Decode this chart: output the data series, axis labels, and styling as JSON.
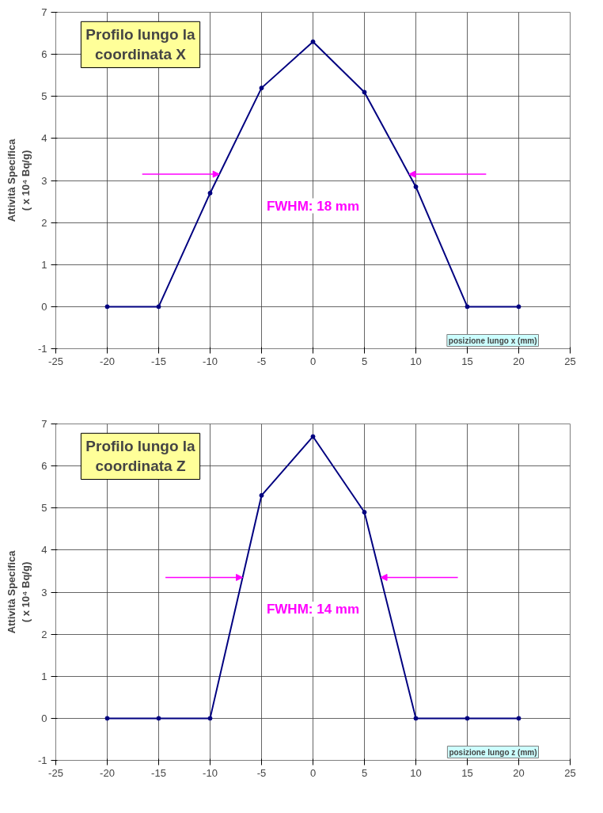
{
  "chart_data": [
    {
      "type": "line",
      "title": "Profilo lungo la\ncoordinata X",
      "xlabel": "posizione lungo x (mm)",
      "ylabel": "Attività Specifica\n( x 10⁴ Bq/g)",
      "x": [
        -20,
        -15,
        -10,
        -5,
        0,
        5,
        10,
        15,
        20
      ],
      "series": [
        {
          "color": "#000080",
          "values": [
            0,
            0,
            2.7,
            5.2,
            6.3,
            5.1,
            2.85,
            0,
            0
          ]
        }
      ],
      "xlim": [
        -25,
        25
      ],
      "ylim": [
        -1,
        7
      ],
      "xticks": [
        -25,
        -20,
        -15,
        -10,
        -5,
        0,
        5,
        10,
        15,
        20,
        25
      ],
      "yticks": [
        -1,
        0,
        1,
        2,
        3,
        4,
        5,
        6,
        7
      ],
      "grid": true,
      "marker": "circle",
      "line_style": "solid",
      "annotations": [
        "FWHM: 18 mm"
      ]
    },
    {
      "type": "line",
      "title": "Profilo lungo la\ncoordinata Z",
      "xlabel": "posizione lungo z (mm)",
      "ylabel": "Attività Specifica\n( x 10⁴ Bq/g)",
      "x": [
        -20,
        -15,
        -10,
        -5,
        0,
        5,
        10,
        15,
        20
      ],
      "series": [
        {
          "color": "#000080",
          "values": [
            0,
            0,
            0,
            5.3,
            6.7,
            4.9,
            0,
            0,
            0
          ]
        }
      ],
      "xlim": [
        -25,
        25
      ],
      "ylim": [
        -1,
        7
      ],
      "xticks": [
        -25,
        -20,
        -15,
        -10,
        -5,
        0,
        5,
        10,
        15,
        20,
        25
      ],
      "yticks": [
        -1,
        0,
        1,
        2,
        3,
        4,
        5,
        6,
        7
      ],
      "grid": true,
      "marker": "circle",
      "line_style": "solid",
      "annotations": [
        "FWHM: 14 mm"
      ]
    }
  ]
}
